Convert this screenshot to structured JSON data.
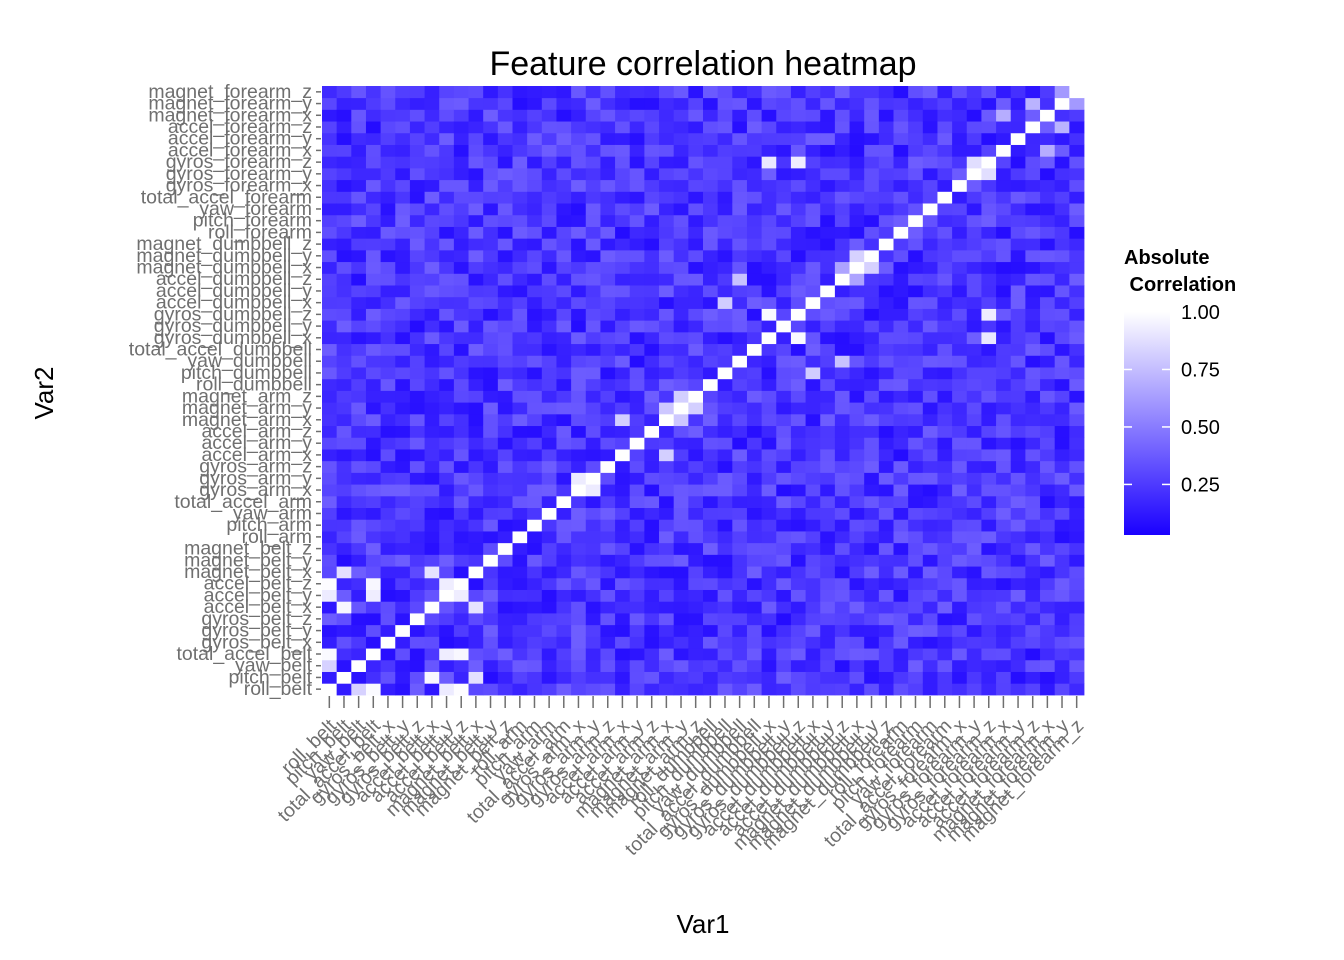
{
  "chart_data": {
    "type": "heatmap",
    "title": "Feature correlation heatmap",
    "xlabel": "Var1",
    "ylabel": "Var2",
    "variables": [
      "roll_belt",
      "pitch_belt",
      "yaw_belt",
      "total_accel_belt",
      "gyros_belt_x",
      "gyros_belt_y",
      "gyros_belt_z",
      "accel_belt_x",
      "accel_belt_y",
      "accel_belt_z",
      "magnet_belt_x",
      "magnet_belt_y",
      "magnet_belt_z",
      "roll_arm",
      "pitch_arm",
      "yaw_arm",
      "total_accel_arm",
      "gyros_arm_x",
      "gyros_arm_y",
      "gyros_arm_z",
      "accel_arm_x",
      "accel_arm_y",
      "accel_arm_z",
      "magnet_arm_x",
      "magnet_arm_y",
      "magnet_arm_z",
      "roll_dumbbell",
      "pitch_dumbbell",
      "yaw_dumbbell",
      "total_accel_dumbbell",
      "gyros_dumbbell_x",
      "gyros_dumbbell_y",
      "gyros_dumbbell_z",
      "accel_dumbbell_x",
      "accel_dumbbell_y",
      "accel_dumbbell_z",
      "magnet_dumbbell_x",
      "magnet_dumbbell_y",
      "magnet_dumbbell_z",
      "roll_forearm",
      "pitch_forearm",
      "yaw_forearm",
      "total_accel_forearm",
      "gyros_forearm_x",
      "gyros_forearm_y",
      "gyros_forearm_z",
      "accel_forearm_x",
      "accel_forearm_y",
      "accel_forearm_z",
      "magnet_forearm_x",
      "magnet_forearm_y",
      "magnet_forearm_z"
    ],
    "value_range": [
      0.0,
      1.0
    ],
    "strong_pairs": [
      {
        "a": "roll_belt",
        "b": "yaw_belt",
        "value": 0.82
      },
      {
        "a": "roll_belt",
        "b": "total_accel_belt",
        "value": 0.98
      },
      {
        "a": "roll_belt",
        "b": "accel_belt_y",
        "value": 0.92
      },
      {
        "a": "roll_belt",
        "b": "accel_belt_z",
        "value": 0.99
      },
      {
        "a": "pitch_belt",
        "b": "accel_belt_x",
        "value": 0.97
      },
      {
        "a": "pitch_belt",
        "b": "magnet_belt_x",
        "value": 0.88
      },
      {
        "a": "total_accel_belt",
        "b": "accel_belt_y",
        "value": 0.93
      },
      {
        "a": "total_accel_belt",
        "b": "accel_belt_z",
        "value": 0.97
      },
      {
        "a": "accel_belt_y",
        "b": "accel_belt_z",
        "value": 0.93
      },
      {
        "a": "accel_belt_x",
        "b": "magnet_belt_x",
        "value": 0.89
      },
      {
        "a": "gyros_arm_x",
        "b": "gyros_arm_y",
        "value": 0.92
      },
      {
        "a": "accel_arm_x",
        "b": "magnet_arm_x",
        "value": 0.81
      },
      {
        "a": "magnet_arm_y",
        "b": "magnet_arm_z",
        "value": 0.81
      },
      {
        "a": "magnet_arm_x",
        "b": "magnet_arm_y",
        "value": 0.78
      },
      {
        "a": "yaw_dumbbell",
        "b": "accel_dumbbell_z",
        "value": 0.76
      },
      {
        "a": "pitch_dumbbell",
        "b": "accel_dumbbell_x",
        "value": 0.8
      },
      {
        "a": "gyros_dumbbell_x",
        "b": "gyros_dumbbell_z",
        "value": 0.98
      },
      {
        "a": "gyros_dumbbell_z",
        "b": "gyros_forearm_z",
        "value": 0.93
      },
      {
        "a": "gyros_dumbbell_x",
        "b": "gyros_forearm_z",
        "value": 0.91
      },
      {
        "a": "gyros_forearm_y",
        "b": "gyros_forearm_z",
        "value": 0.87
      },
      {
        "a": "accel_dumbbell_z",
        "b": "magnet_dumbbell_x",
        "value": 0.64
      },
      {
        "a": "magnet_dumbbell_x",
        "b": "magnet_dumbbell_y",
        "value": 0.82
      },
      {
        "a": "accel_forearm_z",
        "b": "magnet_forearm_y",
        "value": 0.7
      },
      {
        "a": "accel_forearm_x",
        "b": "magnet_forearm_x",
        "value": 0.68
      },
      {
        "a": "magnet_forearm_y",
        "b": "magnet_forearm_z",
        "value": 0.6
      }
    ],
    "default_level": 0.12,
    "legend": {
      "title_line1": "Absolute",
      "title_line2": " Correlation",
      "ticks": [
        "1.00",
        "0.75",
        "0.50",
        "0.25"
      ],
      "tick_values": [
        1.0,
        0.75,
        0.5,
        0.25
      ],
      "low_color": "#1a00ff",
      "high_color": "#ffffff"
    },
    "grid": false,
    "legend_position": "right"
  }
}
